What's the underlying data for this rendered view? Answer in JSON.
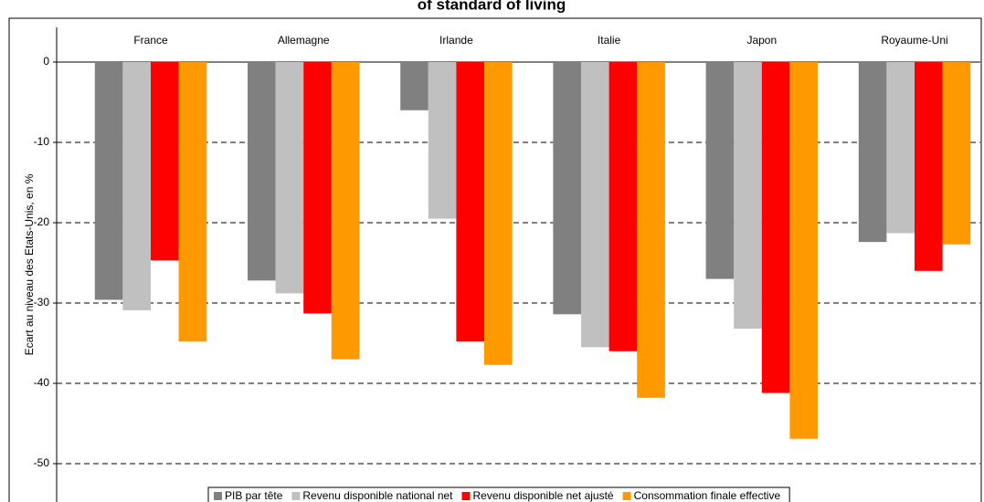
{
  "chart_data": {
    "type": "bar",
    "title": "of standard of living",
    "y_label": "Ecart au niveau des Etats-Unis, en %",
    "categories": [
      "France",
      "Allemagne",
      "Irlande",
      "Italie",
      "Japon",
      "Royaume-Uni"
    ],
    "series": [
      {
        "name": "PIB par tête",
        "color": "#808080",
        "values": [
          -29.6,
          -27.2,
          -6.0,
          -31.4,
          -27.0,
          -22.4
        ]
      },
      {
        "name": "Revenu disponible national net",
        "color": "#c0c0c0",
        "values": [
          -30.9,
          -28.8,
          -19.5,
          -35.5,
          -33.2,
          -21.3
        ]
      },
      {
        "name": "Revenu disponible net ajusté",
        "color": "#ff0000",
        "values": [
          -24.7,
          -31.3,
          -34.8,
          -36.0,
          -41.2,
          -26.0
        ]
      },
      {
        "name": "Consommation finale effective",
        "color": "#ff9900",
        "values": [
          -34.8,
          -37.0,
          -37.7,
          -41.8,
          -46.9,
          -22.7
        ]
      }
    ],
    "ylim": [
      -50,
      0
    ],
    "yticks": [
      0,
      -10,
      -20,
      -30,
      -40,
      -50
    ],
    "grid": true
  }
}
